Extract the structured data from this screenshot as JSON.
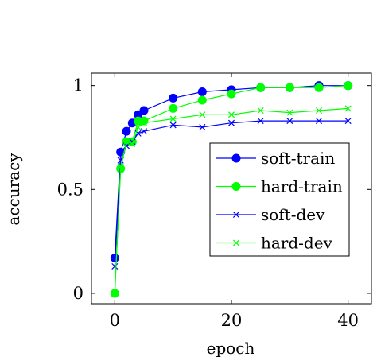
{
  "chart_data": {
    "type": "line",
    "title": "",
    "xlabel": "epoch",
    "ylabel": "accuracy",
    "xlim": [
      -4,
      44
    ],
    "ylim": [
      -0.05,
      1.06
    ],
    "x_ticks": [
      0,
      20,
      40
    ],
    "x_tick_labels": [
      "0",
      "20",
      "40"
    ],
    "y_ticks": [
      0,
      0.5,
      1
    ],
    "y_tick_labels": [
      "0",
      "0.5",
      "1"
    ],
    "grid": false,
    "legend_position": "center-right",
    "series": [
      {
        "name": "soft-train",
        "color": "#0000ff",
        "marker": "circle",
        "x": [
          0,
          1,
          2,
          3,
          4,
          5,
          10,
          15,
          20,
          25,
          30,
          35,
          40
        ],
        "y": [
          0.17,
          0.68,
          0.78,
          0.82,
          0.86,
          0.88,
          0.94,
          0.97,
          0.98,
          0.99,
          0.99,
          1.0,
          1.0
        ]
      },
      {
        "name": "hard-train",
        "color": "#00ff00",
        "marker": "circle",
        "x": [
          0,
          1,
          2,
          3,
          4,
          5,
          10,
          15,
          20,
          25,
          30,
          35,
          40
        ],
        "y": [
          0.0,
          0.6,
          0.73,
          0.73,
          0.83,
          0.83,
          0.89,
          0.93,
          0.96,
          0.99,
          0.99,
          0.99,
          1.0
        ]
      },
      {
        "name": "soft-dev",
        "color": "#0000ff",
        "marker": "x",
        "x": [
          0,
          1,
          2,
          3,
          4,
          5,
          10,
          15,
          20,
          25,
          30,
          35,
          40
        ],
        "y": [
          0.13,
          0.64,
          0.71,
          0.73,
          0.77,
          0.78,
          0.81,
          0.8,
          0.82,
          0.83,
          0.83,
          0.83,
          0.83
        ]
      },
      {
        "name": "hard-dev",
        "color": "#00ff00",
        "marker": "x",
        "x": [
          0,
          1,
          2,
          3,
          4,
          5,
          10,
          15,
          20,
          25,
          30,
          35,
          40
        ],
        "y": [
          0.0,
          0.61,
          0.73,
          0.72,
          0.8,
          0.82,
          0.84,
          0.86,
          0.86,
          0.88,
          0.87,
          0.88,
          0.89
        ]
      }
    ]
  }
}
